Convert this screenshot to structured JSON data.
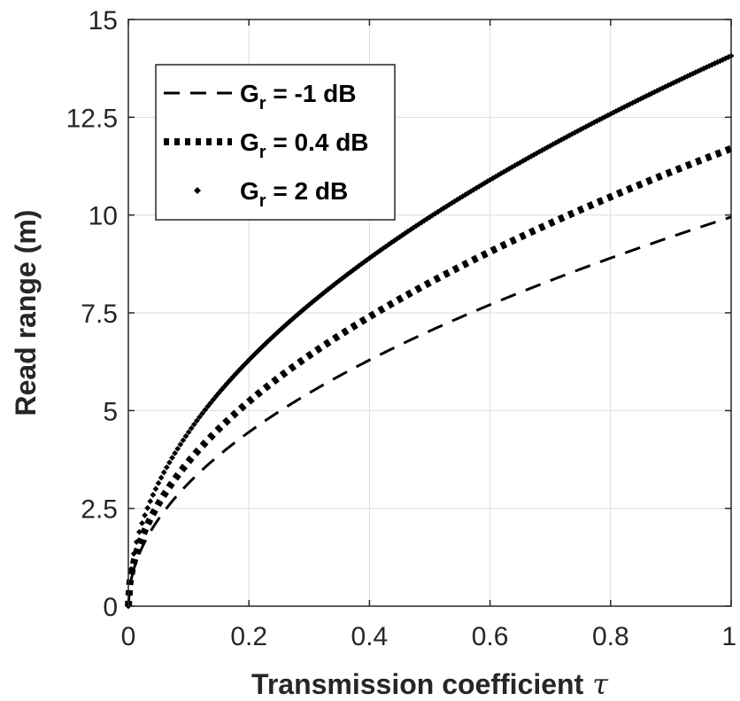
{
  "chart_data": {
    "type": "line",
    "xlabel": "Transmission coefficient",
    "xlabel_symbol": "τ",
    "ylabel": "Read range (m)",
    "xlim": [
      0,
      1
    ],
    "ylim": [
      0,
      15
    ],
    "x_ticks": [
      "0",
      "0.2",
      "0.4",
      "0.6",
      "0.8",
      "1"
    ],
    "y_ticks": [
      "0",
      "2.5",
      "5",
      "7.5",
      "10",
      "12.5",
      "15"
    ],
    "grid": true,
    "legend_placement": "top-left",
    "series": [
      {
        "name": "Gr = -1 dB",
        "name_main": "G",
        "name_sub": "r",
        "name_rest": " = -1 dB",
        "style": "dashed",
        "color": "#000000",
        "scale": 9.95
      },
      {
        "name": "Gr = 0.4 dB",
        "name_main": "G",
        "name_sub": "r",
        "name_rest": " = 0.4 dB",
        "style": "dotted-thick",
        "color": "#000000",
        "scale": 11.7
      },
      {
        "name": "Gr = 2 dB",
        "name_main": "G",
        "name_sub": "r",
        "name_rest": " = 2 dB",
        "style": "diamond-markers",
        "color": "#000000",
        "scale": 14.07
      }
    ],
    "curve": "y = scale * sqrt(x)"
  }
}
